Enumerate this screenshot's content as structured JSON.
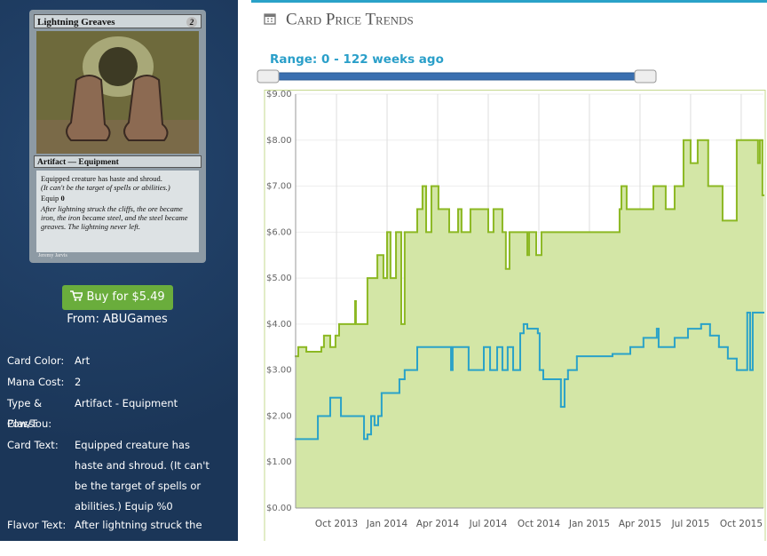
{
  "sidebar": {
    "card": {
      "name": "Lightning Greaves",
      "cost": "2",
      "type_line": "Artifact — Equipment",
      "rules": "Equipped creature has haste and shroud.",
      "reminder": "(It can't be the target of spells or abilities.)",
      "equip": "Equip",
      "equip_cost": "0",
      "flavor": "After lightning struck the cliffs, the ore became iron, the iron became steel, and the steel became greaves. The lightning never left.",
      "artist": "Jeremy Jarvis"
    },
    "buy_button": "Buy for $5.49",
    "source": "From: ABUGames",
    "details": [
      {
        "label": "Card Color:",
        "value": "Art"
      },
      {
        "label": "Mana Cost:",
        "value": "2"
      },
      {
        "label": "Type & Class:",
        "value": "Artifact - Equipment"
      },
      {
        "label": "Pow/Tou:"
      },
      {
        "label": "Card Text:",
        "value": "Equipped creature has haste and shroud. (It can't be the target of spells or abilities.) Equip %0"
      },
      {
        "label": "Flavor Text:",
        "value": "After lightning struck the cliffs,"
      }
    ]
  },
  "chart_data": {
    "type": "line",
    "title": "Card Price Trends",
    "subtitle": "Range: 0 - 122 weeks ago",
    "step": "after",
    "grid": true,
    "xlim": [
      2013.548,
      2015.86
    ],
    "ylim": [
      0,
      9
    ],
    "xticks": [
      {
        "value": 2013.75,
        "label": "Oct 2013"
      },
      {
        "value": 2014.0,
        "label": "Jan 2014"
      },
      {
        "value": 2014.25,
        "label": "Apr 2014"
      },
      {
        "value": 2014.5,
        "label": "Jul 2014"
      },
      {
        "value": 2014.75,
        "label": "Oct 2014"
      },
      {
        "value": 2015.0,
        "label": "Jan 2015"
      },
      {
        "value": 2015.25,
        "label": "Apr 2015"
      },
      {
        "value": 2015.5,
        "label": "Jul 2015"
      },
      {
        "value": 2015.75,
        "label": "Oct 2015"
      }
    ],
    "yticks": [
      {
        "value": 0,
        "label": "$0.00"
      },
      {
        "value": 1,
        "label": "$1.00"
      },
      {
        "value": 2,
        "label": "$2.00"
      },
      {
        "value": 3,
        "label": "$3.00"
      },
      {
        "value": 4,
        "label": "$4.00"
      },
      {
        "value": 5,
        "label": "$5.00"
      },
      {
        "value": 6,
        "label": "$6.00"
      },
      {
        "value": 7,
        "label": "$7.00"
      },
      {
        "value": 8,
        "label": "$8.00"
      },
      {
        "value": 9,
        "label": "$9.00"
      }
    ],
    "series": [
      {
        "color": "#8cb823",
        "fill": "#d3e6a6",
        "x": [
          2013.548,
          2013.561,
          2013.601,
          2013.675,
          2013.688,
          2013.719,
          2013.745,
          2013.763,
          2013.842,
          2013.846,
          2013.903,
          2013.952,
          2013.982,
          2014.0,
          2014.017,
          2014.044,
          2014.07,
          2014.087,
          2014.149,
          2014.175,
          2014.193,
          2014.219,
          2014.254,
          2014.307,
          2014.351,
          2014.368,
          2014.412,
          2014.5,
          2014.526,
          2014.57,
          2014.587,
          2014.605,
          2014.693,
          2014.702,
          2014.737,
          2014.763,
          2015.149,
          2015.158,
          2015.184,
          2015.316,
          2015.377,
          2015.421,
          2015.465,
          2015.5,
          2015.535,
          2015.587,
          2015.658,
          2015.728,
          2015.833,
          2015.842,
          2015.855
        ],
        "values": [
          3.3,
          3.5,
          3.4,
          3.5,
          3.75,
          3.5,
          3.75,
          4.0,
          4.5,
          4.0,
          5.0,
          5.5,
          5.0,
          6.0,
          5.0,
          6.0,
          4.0,
          6.0,
          6.5,
          7.0,
          6.0,
          7.0,
          6.5,
          6.0,
          6.5,
          6.0,
          6.5,
          6.0,
          6.5,
          6.0,
          5.2,
          6.0,
          5.5,
          6.0,
          5.5,
          6.0,
          6.5,
          7.0,
          6.5,
          7.0,
          6.5,
          7.0,
          8.0,
          7.5,
          8.0,
          7.0,
          6.25,
          8.0,
          7.5,
          8.0,
          6.8
        ]
      },
      {
        "color": "#2aa2c8",
        "x": [
          2013.548,
          2013.658,
          2013.719,
          2013.772,
          2013.886,
          2013.903,
          2013.921,
          2013.938,
          2013.956,
          2013.973,
          2014.061,
          2014.087,
          2014.149,
          2014.316,
          2014.324,
          2014.403,
          2014.478,
          2014.509,
          2014.544,
          2014.57,
          2014.596,
          2014.623,
          2014.658,
          2014.675,
          2014.693,
          2014.745,
          2014.754,
          2014.772,
          2014.859,
          2014.877,
          2014.894,
          2014.938,
          2015.114,
          2015.202,
          2015.267,
          2015.333,
          2015.342,
          2015.421,
          2015.487,
          2015.552,
          2015.596,
          2015.64,
          2015.684,
          2015.728,
          2015.78,
          2015.794,
          2015.807
        ],
        "values": [
          1.5,
          2.0,
          2.4,
          2.0,
          1.5,
          1.6,
          2.0,
          1.8,
          2.0,
          2.5,
          2.8,
          3.0,
          3.5,
          3.0,
          3.5,
          3.0,
          3.5,
          3.0,
          3.5,
          3.0,
          3.5,
          3.0,
          3.8,
          4.0,
          3.9,
          3.8,
          3.0,
          2.8,
          2.2,
          2.8,
          3.0,
          3.3,
          3.35,
          3.5,
          3.7,
          3.9,
          3.5,
          3.7,
          3.9,
          4.0,
          3.75,
          3.5,
          3.25,
          3.0,
          4.25,
          3.0,
          4.25
        ]
      }
    ]
  }
}
